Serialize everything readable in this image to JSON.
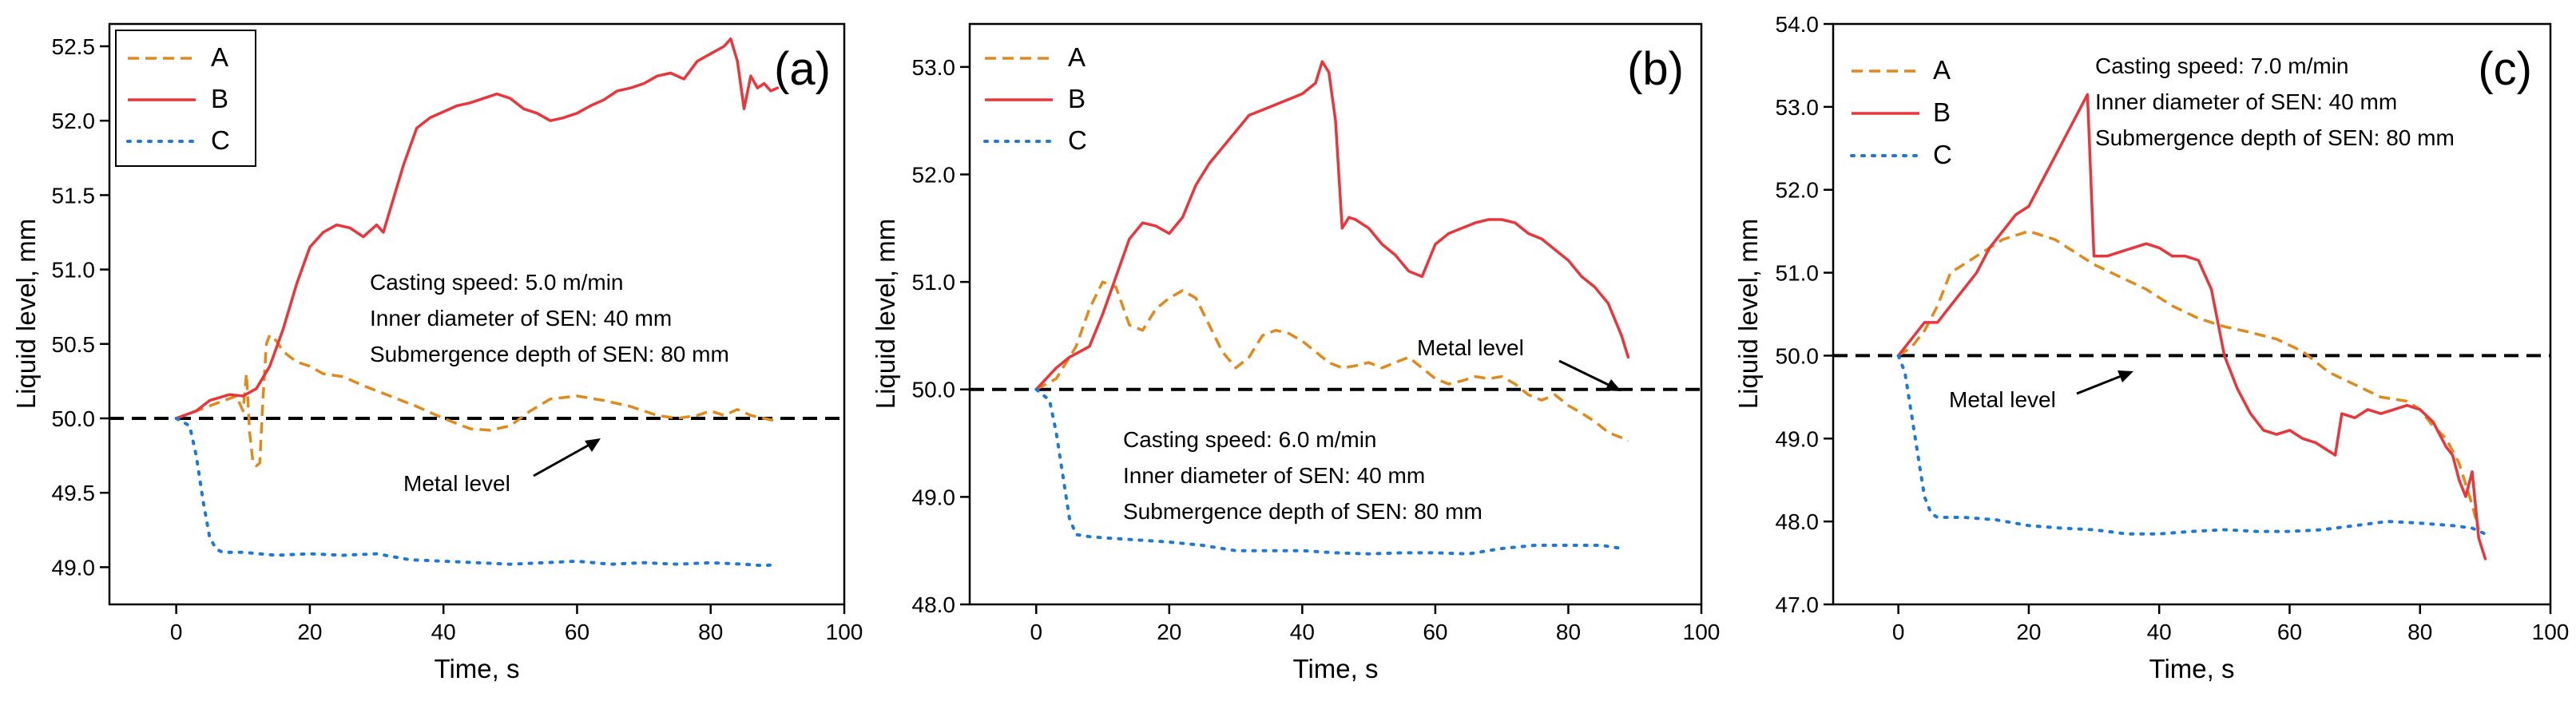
{
  "figure": {
    "series_names": [
      "A",
      "B",
      "C"
    ],
    "series_colors": {
      "A": "#E08A1E",
      "B": "#E8363B",
      "C": "#1E78D8"
    },
    "metal_level_color": "#000000"
  },
  "chart_data": [
    {
      "type": "line",
      "panel_label": "(a)",
      "xlabel": "Time, s",
      "ylabel": "Liquid level, mm",
      "xlim": [
        -10,
        100
      ],
      "ylim": [
        48.75,
        52.65
      ],
      "xticks": [
        0,
        20,
        40,
        60,
        80,
        100
      ],
      "xtick_labels": [
        "0",
        "20",
        "40",
        "60",
        "80",
        "100"
      ],
      "yticks": [
        49.0,
        49.5,
        50.0,
        50.5,
        51.0,
        51.5,
        52.0,
        52.5
      ],
      "ytick_labels": [
        "49.0",
        "49.5",
        "50.0",
        "50.5",
        "51.0",
        "51.5",
        "52.0",
        "52.5"
      ],
      "legend_position": "top-left",
      "annotations": [
        "Casting speed: 5.0 m/min",
        "Inner diameter of SEN: 40 mm",
        "Submergence depth of SEN: 80 mm"
      ],
      "metal_level": {
        "value": 50.0,
        "label": "Metal level"
      },
      "series": [
        {
          "name": "A",
          "x": [
            0,
            3,
            6,
            9,
            10,
            10.5,
            11,
            11.5,
            12,
            12.5,
            13,
            13.5,
            14,
            15,
            16,
            18,
            20,
            22,
            25,
            28,
            32,
            36,
            40,
            44,
            47,
            50,
            53,
            56,
            60,
            64,
            68,
            70,
            72,
            75,
            78,
            80,
            82,
            84,
            86,
            88,
            90
          ],
          "y": [
            50.0,
            50.05,
            50.1,
            50.15,
            50.05,
            50.3,
            49.9,
            49.7,
            49.68,
            49.7,
            50.15,
            50.5,
            50.56,
            50.52,
            50.45,
            50.38,
            50.35,
            50.3,
            50.28,
            50.22,
            50.15,
            50.08,
            50.0,
            49.93,
            49.92,
            49.95,
            50.05,
            50.13,
            50.15,
            50.12,
            50.08,
            50.05,
            50.02,
            50.0,
            50.02,
            50.05,
            50.02,
            50.06,
            50.02,
            50.0,
            49.98
          ]
        },
        {
          "name": "B",
          "x": [
            0,
            3,
            5,
            8,
            10,
            12,
            14,
            16,
            18,
            20,
            22,
            24,
            26,
            28,
            30,
            31,
            32,
            34,
            36,
            38,
            40,
            42,
            44,
            46,
            48,
            50,
            52,
            54,
            56,
            58,
            60,
            62,
            64,
            66,
            68,
            70,
            72,
            74,
            76,
            78,
            80,
            82,
            83,
            84,
            85,
            86,
            87,
            88,
            89,
            90
          ],
          "y": [
            50.0,
            50.05,
            50.12,
            50.16,
            50.15,
            50.2,
            50.35,
            50.6,
            50.9,
            51.15,
            51.25,
            51.3,
            51.28,
            51.22,
            51.3,
            51.25,
            51.4,
            51.7,
            51.95,
            52.02,
            52.06,
            52.1,
            52.12,
            52.15,
            52.18,
            52.15,
            52.08,
            52.05,
            52.0,
            52.02,
            52.05,
            52.1,
            52.14,
            52.2,
            52.22,
            52.25,
            52.3,
            52.32,
            52.28,
            52.4,
            52.45,
            52.5,
            52.55,
            52.4,
            52.08,
            52.3,
            52.22,
            52.25,
            52.2,
            52.22
          ]
        },
        {
          "name": "C",
          "x": [
            0,
            2,
            3,
            4,
            5,
            6,
            7,
            10,
            15,
            20,
            25,
            30,
            35,
            40,
            45,
            50,
            55,
            60,
            65,
            70,
            75,
            80,
            85,
            88,
            90
          ],
          "y": [
            50.0,
            49.95,
            49.75,
            49.45,
            49.2,
            49.12,
            49.1,
            49.1,
            49.08,
            49.09,
            49.08,
            49.09,
            49.05,
            49.04,
            49.03,
            49.02,
            49.03,
            49.04,
            49.02,
            49.03,
            49.02,
            49.03,
            49.02,
            49.01,
            49.02
          ]
        }
      ]
    },
    {
      "type": "line",
      "panel_label": "(b)",
      "xlabel": "Time, s",
      "ylabel": "Liquid level, mm",
      "xlim": [
        -10,
        100
      ],
      "ylim": [
        48.0,
        53.4
      ],
      "xticks": [
        0,
        20,
        40,
        60,
        80,
        100
      ],
      "xtick_labels": [
        "0",
        "20",
        "40",
        "60",
        "80",
        "100"
      ],
      "yticks": [
        48.0,
        49.0,
        50.0,
        51.0,
        52.0,
        53.0
      ],
      "ytick_labels": [
        "48.0",
        "49.0",
        "50.0",
        "51.0",
        "52.0",
        "53.0"
      ],
      "legend_position": "top-right",
      "annotations": [
        "Casting speed: 6.0 m/min",
        "Inner diameter of SEN: 40 mm",
        "Submergence depth of SEN: 80 mm"
      ],
      "metal_level": {
        "value": 50.0,
        "label": "Metal level"
      },
      "series": [
        {
          "name": "A",
          "x": [
            0,
            3,
            6,
            8,
            10,
            12,
            14,
            16,
            18,
            20,
            22,
            24,
            26,
            28,
            30,
            32,
            34,
            36,
            38,
            40,
            42,
            44,
            46,
            48,
            50,
            52,
            54,
            56,
            58,
            60,
            62,
            64,
            66,
            68,
            70,
            72,
            74,
            76,
            78,
            80,
            82,
            84,
            86,
            88,
            89
          ],
          "y": [
            50.0,
            50.1,
            50.4,
            50.75,
            51.0,
            50.95,
            50.6,
            50.55,
            50.75,
            50.85,
            50.92,
            50.85,
            50.6,
            50.35,
            50.2,
            50.3,
            50.5,
            50.55,
            50.52,
            50.45,
            50.35,
            50.25,
            50.2,
            50.22,
            50.25,
            50.2,
            50.25,
            50.3,
            50.2,
            50.1,
            50.05,
            50.08,
            50.12,
            50.1,
            50.12,
            50.05,
            49.95,
            49.9,
            49.95,
            49.85,
            49.78,
            49.7,
            49.6,
            49.55,
            49.52
          ]
        },
        {
          "name": "B",
          "x": [
            0,
            3,
            5,
            8,
            10,
            12,
            14,
            16,
            18,
            20,
            22,
            24,
            26,
            28,
            30,
            32,
            34,
            36,
            38,
            40,
            42,
            43,
            44,
            45,
            46,
            47,
            48,
            50,
            52,
            54,
            56,
            58,
            60,
            62,
            64,
            66,
            68,
            70,
            72,
            74,
            76,
            78,
            80,
            82,
            84,
            86,
            88,
            89
          ],
          "y": [
            50.0,
            50.2,
            50.3,
            50.4,
            50.7,
            51.05,
            51.4,
            51.55,
            51.52,
            51.45,
            51.6,
            51.9,
            52.1,
            52.25,
            52.4,
            52.55,
            52.6,
            52.65,
            52.7,
            52.75,
            52.85,
            53.05,
            52.95,
            52.5,
            51.5,
            51.6,
            51.58,
            51.5,
            51.35,
            51.25,
            51.1,
            51.05,
            51.35,
            51.45,
            51.5,
            51.55,
            51.58,
            51.58,
            51.55,
            51.45,
            51.4,
            51.3,
            51.2,
            51.05,
            50.95,
            50.8,
            50.5,
            50.3
          ]
        },
        {
          "name": "C",
          "x": [
            0,
            2,
            3,
            4,
            5,
            6,
            8,
            10,
            15,
            20,
            25,
            30,
            35,
            40,
            45,
            50,
            55,
            60,
            65,
            70,
            75,
            80,
            85,
            88
          ],
          "y": [
            50.0,
            49.9,
            49.6,
            49.2,
            48.8,
            48.65,
            48.63,
            48.62,
            48.6,
            48.58,
            48.55,
            48.5,
            48.5,
            48.5,
            48.48,
            48.47,
            48.48,
            48.48,
            48.47,
            48.52,
            48.55,
            48.55,
            48.55,
            48.52
          ]
        }
      ]
    },
    {
      "type": "line",
      "panel_label": "(c)",
      "xlabel": "Time, s",
      "ylabel": "Liquid level, mm",
      "xlim": [
        -10,
        100
      ],
      "ylim": [
        47.0,
        54.0
      ],
      "xticks": [
        0,
        20,
        40,
        60,
        80,
        100
      ],
      "xtick_labels": [
        "0",
        "20",
        "40",
        "60",
        "80",
        "100"
      ],
      "yticks": [
        47.0,
        48.0,
        49.0,
        50.0,
        51.0,
        52.0,
        53.0,
        54.0
      ],
      "ytick_labels": [
        "47.0",
        "48.0",
        "49.0",
        "50.0",
        "51.0",
        "52.0",
        "53.0",
        "54.0"
      ],
      "legend_position": "top-left",
      "annotations": [
        "Casting speed: 7.0 m/min",
        "Inner diameter of SEN: 40 mm",
        "Submergence depth of SEN: 80 mm"
      ],
      "metal_level": {
        "value": 50.0,
        "label": "Metal level"
      },
      "series": [
        {
          "name": "A",
          "x": [
            0,
            2,
            4,
            6,
            8,
            10,
            12,
            14,
            16,
            18,
            20,
            22,
            24,
            26,
            28,
            30,
            34,
            38,
            42,
            46,
            50,
            54,
            58,
            62,
            66,
            70,
            74,
            78,
            80,
            82,
            84,
            86,
            88,
            89
          ],
          "y": [
            50.0,
            50.1,
            50.3,
            50.6,
            51.0,
            51.1,
            51.2,
            51.3,
            51.4,
            51.45,
            51.5,
            51.45,
            51.4,
            51.3,
            51.2,
            51.1,
            50.95,
            50.8,
            50.6,
            50.45,
            50.35,
            50.28,
            50.2,
            50.05,
            49.8,
            49.65,
            49.5,
            49.45,
            49.35,
            49.15,
            49.0,
            48.7,
            48.2,
            47.9
          ]
        },
        {
          "name": "B",
          "x": [
            0,
            2,
            4,
            6,
            8,
            10,
            12,
            14,
            16,
            18,
            20,
            22,
            24,
            26,
            28,
            29,
            30,
            32,
            34,
            36,
            38,
            40,
            42,
            44,
            46,
            48,
            50,
            52,
            54,
            56,
            58,
            60,
            62,
            64,
            66,
            67,
            68,
            70,
            72,
            74,
            76,
            78,
            80,
            82,
            84,
            85,
            86,
            87,
            88,
            89,
            90
          ],
          "y": [
            50.0,
            50.2,
            50.4,
            50.4,
            50.6,
            50.8,
            51.0,
            51.3,
            51.5,
            51.7,
            51.8,
            52.1,
            52.4,
            52.7,
            53.0,
            53.15,
            51.2,
            51.2,
            51.25,
            51.3,
            51.35,
            51.3,
            51.2,
            51.2,
            51.15,
            50.8,
            50.0,
            49.6,
            49.3,
            49.1,
            49.05,
            49.1,
            49.0,
            48.95,
            48.85,
            48.8,
            49.3,
            49.25,
            49.35,
            49.3,
            49.35,
            49.4,
            49.35,
            49.2,
            48.9,
            48.8,
            48.5,
            48.3,
            48.6,
            47.8,
            47.55
          ]
        },
        {
          "name": "C",
          "x": [
            0,
            1,
            2,
            3,
            4,
            5,
            6,
            10,
            15,
            20,
            25,
            30,
            35,
            40,
            45,
            50,
            55,
            60,
            65,
            70,
            75,
            80,
            85,
            88,
            90
          ],
          "y": [
            50.0,
            49.8,
            49.3,
            48.8,
            48.3,
            48.1,
            48.05,
            48.05,
            48.02,
            47.95,
            47.92,
            47.9,
            47.85,
            47.85,
            47.88,
            47.9,
            47.88,
            47.88,
            47.9,
            47.95,
            48.0,
            47.98,
            47.95,
            47.92,
            47.85
          ]
        }
      ]
    }
  ]
}
